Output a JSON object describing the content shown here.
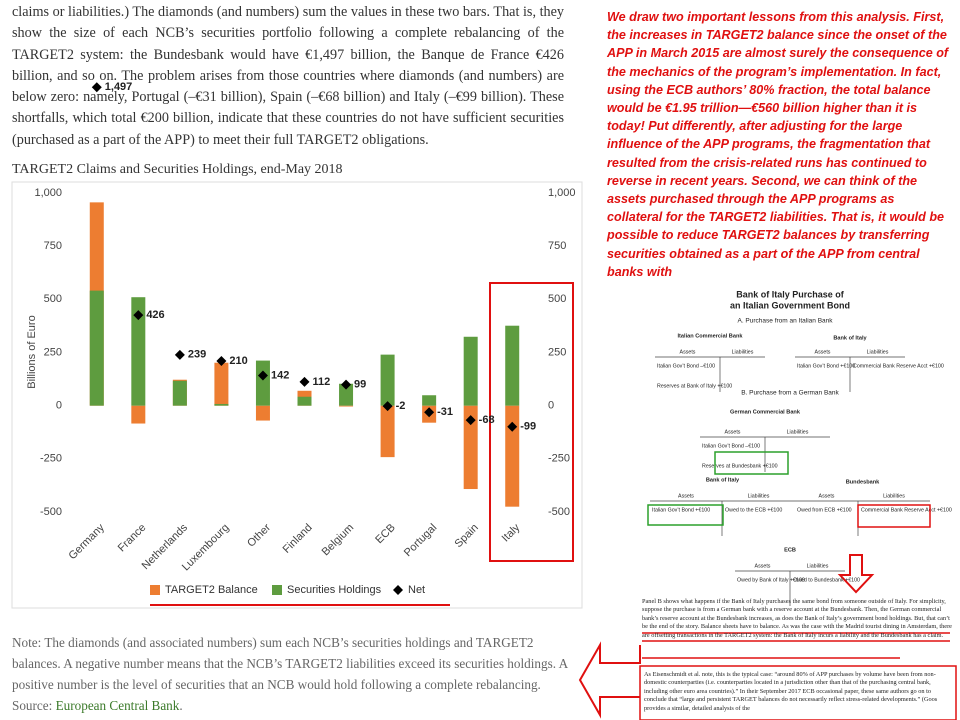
{
  "article": {
    "paragraph": "claims or liabilities.) The diamonds (and numbers) sum the values in these two bars. That is, they show the size of each NCB’s securities portfolio following a complete rebalancing of the TARGET2 system: the Bundesbank would have €1,497 billion, the Banque de France €426 billion, and so on. The problem arises from those countries where diamonds (and numbers) are below zero: namely, Portugal (–€31 billion), Spain (–€68 billion) and Italy (–€99 billion). These shortfalls, which total €200 billion, indicate that these countries do not have sufficient securities (purchased as a part of the APP) to meet their full TARGET2 obligations.",
    "note": "Note: The diamonds (and associated numbers) sum each NCB’s securities holdings and TARGET2 balances. A negative number means that the NCB’s TARGET2 liabilities exceed its securities holdings. A positive number is the level of securities that an NCB would hold following a complete rebalancing.",
    "source_label": "Source:",
    "source_link": "European Central Bank"
  },
  "chart_data": {
    "type": "bar",
    "title": "TARGET2 Claims and Securities Holdings, end-May 2018",
    "y_label": "Billions of Euro",
    "categories": [
      "Germany",
      "France",
      "Netherlands",
      "Luxembourg",
      "Other",
      "Finland",
      "Belgium",
      "ECB",
      "Portugal",
      "Spain",
      "Italy"
    ],
    "series": [
      {
        "name": "TARGET2 Balance",
        "color": "#ed7d31",
        "values": [
          956,
          -84,
          122,
          202,
          -70,
          70,
          -4,
          -242,
          -80,
          -392,
          -475
        ]
      },
      {
        "name": "Securities Holdings",
        "color": "#5e9c3f",
        "values": [
          541,
          510,
          117,
          8,
          212,
          42,
          103,
          240,
          49,
          324,
          376
        ]
      },
      {
        "name": "Net",
        "color": "#000000",
        "marker": "diamond",
        "values": [
          1497,
          426,
          239,
          210,
          142,
          112,
          99,
          -2,
          -31,
          -68,
          -99
        ],
        "value_labels": [
          "1,497",
          "426",
          "239",
          "210",
          "142",
          "112",
          "99",
          "-2",
          "-31",
          "-68",
          "-99"
        ]
      }
    ],
    "ylim": [
      -500,
      1000
    ],
    "yticks": [
      -500,
      -250,
      0,
      250,
      500,
      750,
      {
        "value": 1000,
        "label": "1,000"
      }
    ],
    "y2lim": [
      -500,
      1000
    ],
    "y2ticks": [
      -500,
      -250,
      0,
      250,
      500,
      750,
      {
        "value": 1000,
        "label": "1,000"
      }
    ],
    "grid": false,
    "legend": "bottom"
  },
  "commentary": "We draw two important lessons from this analysis. First, the increases in TARGET2 balance since the onset of the APP in March 2015 are almost surely the consequence of the mechanics of the program’s implementation. In fact, using the ECB authors’ 80% fraction, the total balance would be €1.95 trillion—€560 billion higher than it is today! Put differently, after adjusting for the large influence of the APP programs, the fragmentation that resulted from the crisis-related runs has continued to reverse in recent years. Second, we can think of the assets purchased through the APP programs as collateral for the TARGET2 liabilities. That is, it would be possible to reduce TARGET2 balances by transferring securities obtained as a part of the APP from central banks with",
  "diagram": {
    "title": [
      "Bank of Italy Purchase of",
      "an Italian Government Bond"
    ],
    "section_a": "A. Purchase from an Italian Bank",
    "section_b": "B. Purchase from a German Bank",
    "accounts": [
      {
        "name": "Italian Commercial Bank",
        "headers": [
          "Assets",
          "Liabilities"
        ],
        "assets": [
          "Italian Gov’t Bond –€100",
          "Reserves at Bank of Italy +€100"
        ],
        "liabilities": []
      },
      {
        "name": "Bank of Italy",
        "headers": [
          "Assets",
          "Liabilities"
        ],
        "assets": [
          "Italian Gov’t Bond +€100"
        ],
        "liabilities": [
          "Commercial Bank Reserve Acct +€100"
        ]
      },
      {
        "name": "German Commercial Bank",
        "headers": [
          "Assets",
          "Liabilities"
        ],
        "assets": [
          "Italian Gov’t Bond –€100",
          "Reserves at Bundesbank +€100"
        ],
        "liabilities": []
      },
      {
        "name": "Bank of Italy",
        "headers": [
          "Assets",
          "Liabilities"
        ],
        "assets": [
          "Italian Gov’t Bond +€100"
        ],
        "liabilities": [
          "Owed to the ECB +€100"
        ]
      },
      {
        "name": "Bundesbank",
        "headers": [
          "Assets",
          "Liabilities"
        ],
        "assets": [
          "Owed from ECB +€100"
        ],
        "liabilities": [
          "Commercial Bank Reserve Acct +€100"
        ]
      },
      {
        "name": "ECB",
        "headers": [
          "Assets",
          "Liabilities"
        ],
        "assets": [
          "Owed by Bank of Italy +€100"
        ],
        "liabilities": [
          "Owed to Bundesbank +€100"
        ]
      }
    ],
    "text_1": "Panel B shows what happens if the Bank of Italy purchases the same bond from someone outside of Italy. For simplicity, suppose the purchase is from a German bank with a reserve account at the Bundesbank. Then, the German commercial bank’s reserve account at the Bundesbank increases, as does the Bank of Italy’s government bond holdings. But, that can’t be the end of the story. Balance sheets have to balance. As was the case with the Madrid tourist dining in Amsterdam, there are offsetting transactions in the TARGET2 system: the Bank of Italy incurs a liability and the Bundesbank has a claim.",
    "text_2": "As Eisenschmidt et al. note, this is the typical case: “around 80% of APP purchases by volume have been from non-domestic counterparties (i.e. counterparties located in a jurisdiction other than that of the purchasing central bank, including other euro area countries).” In their September 2017 ECB occasional paper, these same authors go on to conclude that “large and persistent TARGET balances do not necessarily reflect stress-related developments.” (Goos provides a similar, detailed analysis of the"
  }
}
